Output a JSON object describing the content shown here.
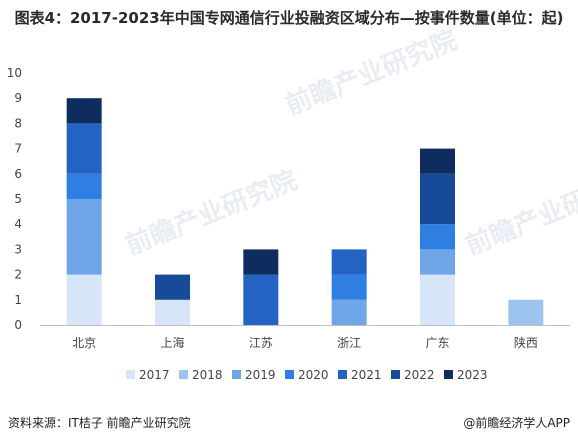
{
  "title": "图表4：2017-2023年中国专网通信行业投融资区域分布—按事件数量(单位：起)",
  "source": "资料来源：IT桔子 前瞻产业研究院",
  "brand": "@前瞻经济学人APP",
  "watermark": "前瞻产业研究院",
  "chart_data": {
    "type": "bar",
    "stacked": true,
    "categories": [
      "北京",
      "上海",
      "江苏",
      "浙江",
      "广东",
      "陕西"
    ],
    "ylim": [
      0,
      10
    ],
    "yticks": [
      0,
      1,
      2,
      3,
      4,
      5,
      6,
      7,
      8,
      9,
      10
    ],
    "grid": false,
    "legend_position": "bottom",
    "series": [
      {
        "name": "2017",
        "color": "#d6e6f8",
        "values": [
          2,
          1,
          0,
          0,
          2,
          0
        ]
      },
      {
        "name": "2018",
        "color": "#9cc3ee",
        "values": [
          0,
          0,
          0,
          0,
          0,
          1
        ]
      },
      {
        "name": "2019",
        "color": "#6fa6e8",
        "values": [
          3,
          0,
          0,
          1,
          1,
          0
        ]
      },
      {
        "name": "2020",
        "color": "#2f7ee2",
        "values": [
          1,
          0,
          0,
          1,
          1,
          0
        ]
      },
      {
        "name": "2021",
        "color": "#2363c4",
        "values": [
          2,
          0,
          2,
          1,
          0,
          0
        ]
      },
      {
        "name": "2022",
        "color": "#174a99",
        "values": [
          0,
          1,
          0,
          0,
          2,
          0
        ]
      },
      {
        "name": "2023",
        "color": "#0e2c5e",
        "values": [
          1,
          0,
          1,
          0,
          1,
          0
        ]
      }
    ]
  }
}
